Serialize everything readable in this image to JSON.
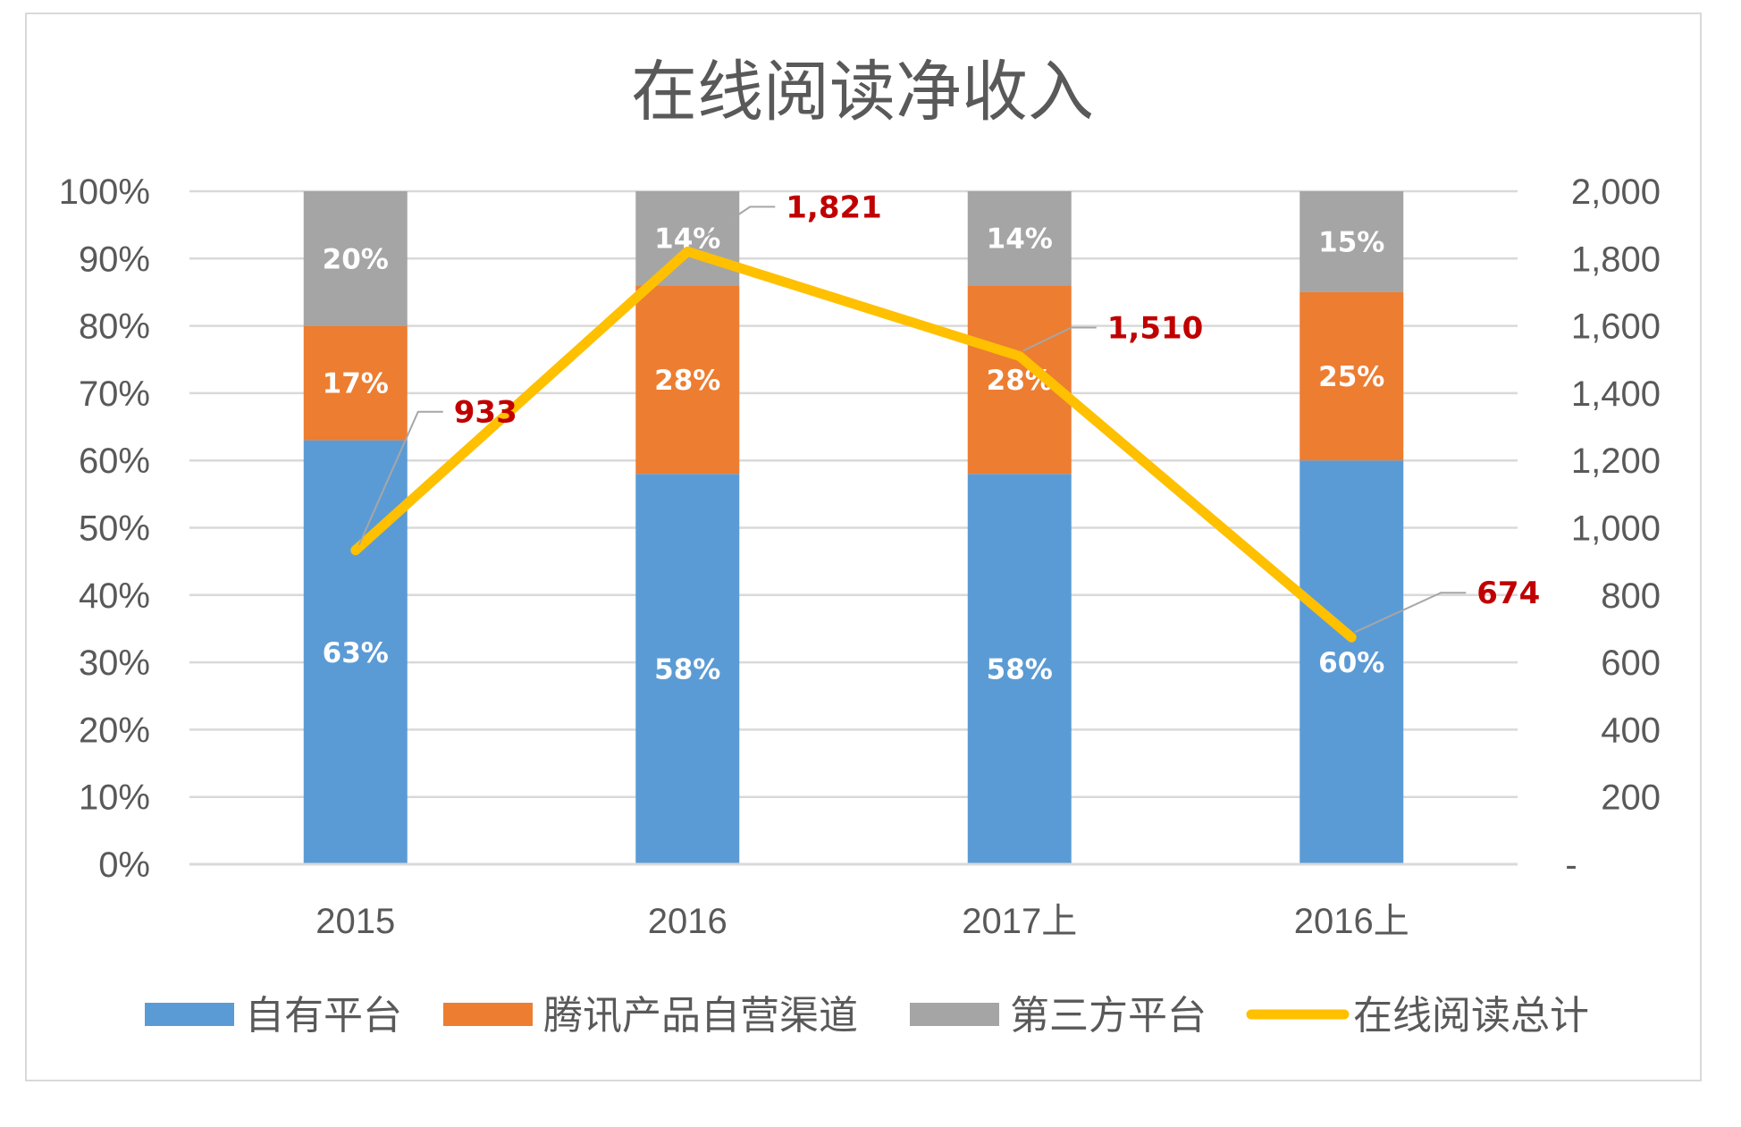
{
  "chart_data": {
    "type": "bar",
    "stacked": true,
    "title": "在线阅读净收入",
    "categories": [
      "2015",
      "2016",
      "2017上",
      "2016上"
    ],
    "series": [
      {
        "name": "自有平台",
        "type": "bar",
        "values": [
          63,
          58,
          58,
          60
        ],
        "labels": [
          "63%",
          "58%",
          "58%",
          "60%"
        ],
        "color": "#5b9bd5"
      },
      {
        "name": "腾讯产品自营渠道",
        "type": "bar",
        "values": [
          17,
          28,
          28,
          25
        ],
        "labels": [
          "17%",
          "28%",
          "28%",
          "25%"
        ],
        "color": "#ed7d31"
      },
      {
        "name": "第三方平台",
        "type": "bar",
        "values": [
          20,
          14,
          14,
          15
        ],
        "labels": [
          "20%",
          "14%",
          "14%",
          "15%"
        ],
        "color": "#a5a5a5"
      },
      {
        "name": "在线阅读总计",
        "type": "line",
        "axis": "right",
        "values": [
          933,
          1821,
          1510,
          674
        ],
        "labels": [
          "933",
          "1,821",
          "1,510",
          "674"
        ],
        "color": "#ffc000"
      }
    ],
    "left_axis": {
      "ylim": [
        0,
        100
      ],
      "ticks": [
        "0%",
        "10%",
        "20%",
        "30%",
        "40%",
        "50%",
        "60%",
        "70%",
        "80%",
        "90%",
        "100%"
      ]
    },
    "right_axis": {
      "ylim": [
        0,
        2000
      ],
      "ticks": [
        "-",
        "200",
        "400",
        "600",
        "800",
        "1,000",
        "1,200",
        "1,400",
        "1,600",
        "1,800",
        "2,000"
      ]
    },
    "grid": true,
    "legend": "bottom",
    "line_label_color": "#c00000"
  }
}
